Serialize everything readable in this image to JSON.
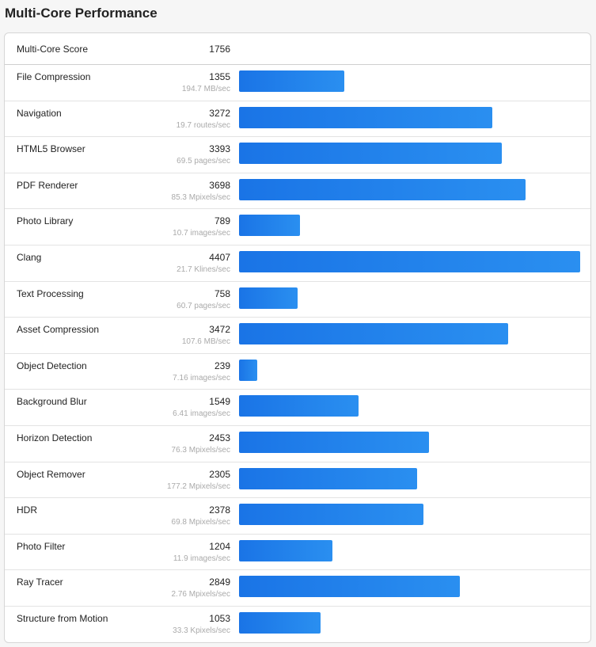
{
  "page_title": "Multi-Core Performance",
  "summary": {
    "label": "Multi-Core Score",
    "score": "1756"
  },
  "bar_color": "#1f80ec",
  "scale_max": 4407,
  "benchmarks": [
    {
      "name": "File Compression",
      "score": "1355",
      "rate": "194.7 MB/sec",
      "value": 1355
    },
    {
      "name": "Navigation",
      "score": "3272",
      "rate": "19.7 routes/sec",
      "value": 3272
    },
    {
      "name": "HTML5 Browser",
      "score": "3393",
      "rate": "69.5 pages/sec",
      "value": 3393
    },
    {
      "name": "PDF Renderer",
      "score": "3698",
      "rate": "85.3 Mpixels/sec",
      "value": 3698
    },
    {
      "name": "Photo Library",
      "score": "789",
      "rate": "10.7 images/sec",
      "value": 789
    },
    {
      "name": "Clang",
      "score": "4407",
      "rate": "21.7 Klines/sec",
      "value": 4407
    },
    {
      "name": "Text Processing",
      "score": "758",
      "rate": "60.7 pages/sec",
      "value": 758
    },
    {
      "name": "Asset Compression",
      "score": "3472",
      "rate": "107.6 MB/sec",
      "value": 3472
    },
    {
      "name": "Object Detection",
      "score": "239",
      "rate": "7.16 images/sec",
      "value": 239
    },
    {
      "name": "Background Blur",
      "score": "1549",
      "rate": "6.41 images/sec",
      "value": 1549
    },
    {
      "name": "Horizon Detection",
      "score": "2453",
      "rate": "76.3 Mpixels/sec",
      "value": 2453
    },
    {
      "name": "Object Remover",
      "score": "2305",
      "rate": "177.2 Mpixels/sec",
      "value": 2305
    },
    {
      "name": "HDR",
      "score": "2378",
      "rate": "69.8 Mpixels/sec",
      "value": 2378
    },
    {
      "name": "Photo Filter",
      "score": "1204",
      "rate": "11.9 images/sec",
      "value": 1204
    },
    {
      "name": "Ray Tracer",
      "score": "2849",
      "rate": "2.76 Mpixels/sec",
      "value": 2849
    },
    {
      "name": "Structure from Motion",
      "score": "1053",
      "rate": "33.3 Kpixels/sec",
      "value": 1053
    }
  ]
}
